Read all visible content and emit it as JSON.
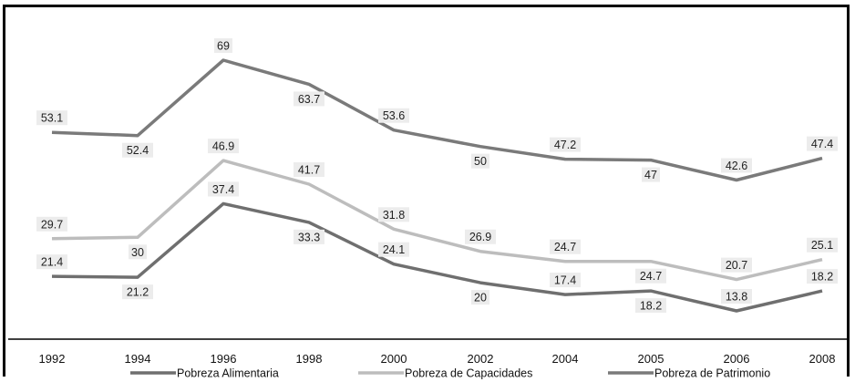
{
  "chart_data": {
    "type": "line",
    "categories": [
      "1992",
      "1994",
      "1996",
      "1998",
      "2000",
      "2002",
      "2004",
      "2005",
      "2006",
      "2008"
    ],
    "series": [
      {
        "name": "Pobreza Alimentaria",
        "color": "#6f6f6f",
        "values": [
          21.4,
          21.2,
          37.4,
          33.3,
          24.1,
          20,
          17.4,
          18.2,
          13.8,
          18.2
        ],
        "labels": [
          "21.4",
          "21.2",
          "37.4",
          "33.3",
          "24.1",
          "20",
          "17.4",
          "18.2",
          "13.8",
          "18.2"
        ]
      },
      {
        "name": "Pobreza de Capacidades",
        "color": "#bdbdbd",
        "values": [
          29.7,
          30,
          46.9,
          41.7,
          31.8,
          26.9,
          24.7,
          24.7,
          20.7,
          25.1
        ],
        "labels": [
          "29.7",
          "30",
          "46.9",
          "41.7",
          "31.8",
          "26.9",
          "24.7",
          "24.7",
          "20.7",
          "25.1"
        ]
      },
      {
        "name": "Pobreza de Patrimonio",
        "color": "#7a7a7a",
        "values": [
          53.1,
          52.4,
          69,
          63.7,
          53.6,
          50,
          47.2,
          47,
          42.6,
          47.4
        ],
        "labels": [
          "53.1",
          "52.4",
          "69",
          "63.7",
          "53.6",
          "50",
          "47.2",
          "47",
          "42.6",
          "47.4"
        ]
      }
    ],
    "grid": false,
    "legend_position": "bottom",
    "label_placement": [
      [
        "above",
        "below",
        "above",
        "below",
        "above",
        "below",
        "above",
        "below",
        "above",
        "above"
      ],
      [
        "above",
        "below",
        "above",
        "above",
        "above",
        "above",
        "above",
        "below",
        "above",
        "above"
      ],
      [
        "above",
        "below",
        "above",
        "below",
        "above",
        "below",
        "above",
        "below",
        "above",
        "above"
      ]
    ]
  }
}
